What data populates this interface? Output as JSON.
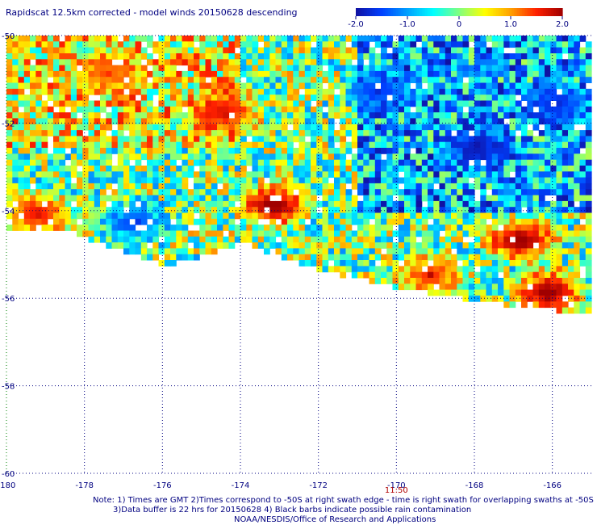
{
  "title": "Rapidscat 12.5km corrected - model winds 20150628 descending",
  "colorbar": {
    "labels": [
      "-2.0",
      "-1.0",
      "0",
      "1.0",
      "2.0"
    ],
    "values": [
      -2.0,
      -1.0,
      0,
      1.0,
      2.0
    ],
    "range": [
      -2.0,
      2.0
    ],
    "colors": [
      "#1010a0",
      "#0040ff",
      "#00a0ff",
      "#00ffff",
      "#80ff80",
      "#ffff00",
      "#ffa000",
      "#ff2000",
      "#a00000"
    ]
  },
  "chart_data": {
    "type": "heatmap",
    "xlim": [
      -180,
      -165
    ],
    "ylim": [
      -60,
      -50
    ],
    "xticks": [
      -180,
      -178,
      -176,
      -174,
      -172,
      -170,
      -168,
      -166
    ],
    "xtick_labels": [
      "-180",
      "-178",
      "-176",
      "-174",
      "-172",
      "-170",
      "-168",
      "-166"
    ],
    "yticks": [
      -50,
      -52,
      -54,
      -56,
      -58,
      -60
    ],
    "ytick_labels": [
      "-50",
      "-52",
      "-54",
      "-56",
      "-58",
      "-60"
    ],
    "grid": true,
    "time_annotations": [
      {
        "x": -170,
        "label": "11:50"
      }
    ],
    "hotspots": [
      {
        "x": -173.2,
        "y": -53.8,
        "value": 2.0
      },
      {
        "x": -166.9,
        "y": -54.6,
        "value": 2.0
      },
      {
        "x": -166.2,
        "y": -55.8,
        "value": 2.0
      },
      {
        "x": -169.2,
        "y": -55.4,
        "value": 1.4
      },
      {
        "x": -174.5,
        "y": -51.7,
        "value": 1.6
      },
      {
        "x": -179.3,
        "y": -54.0,
        "value": 1.5
      },
      {
        "x": -177.5,
        "y": -50.8,
        "value": 1.2
      }
    ],
    "coldspots": [
      {
        "x": -168.0,
        "y": -52.5,
        "value": -1.8
      },
      {
        "x": -170.5,
        "y": -51.2,
        "value": -1.5
      },
      {
        "x": -176.8,
        "y": -54.2,
        "value": -1.4
      },
      {
        "x": -166.0,
        "y": -51.5,
        "value": -1.6
      }
    ]
  },
  "notes": {
    "line1": "Note: 1) Times are GMT 2)Times correspond to -50S at right swath edge - time is right swath for overlapping swaths at -50S",
    "line2": "3)Data buffer is 22 hrs for 20150628 4) Black barbs indicate possible rain contamination",
    "line3": "NOAA/NESDIS/Office of Research and Applications"
  }
}
